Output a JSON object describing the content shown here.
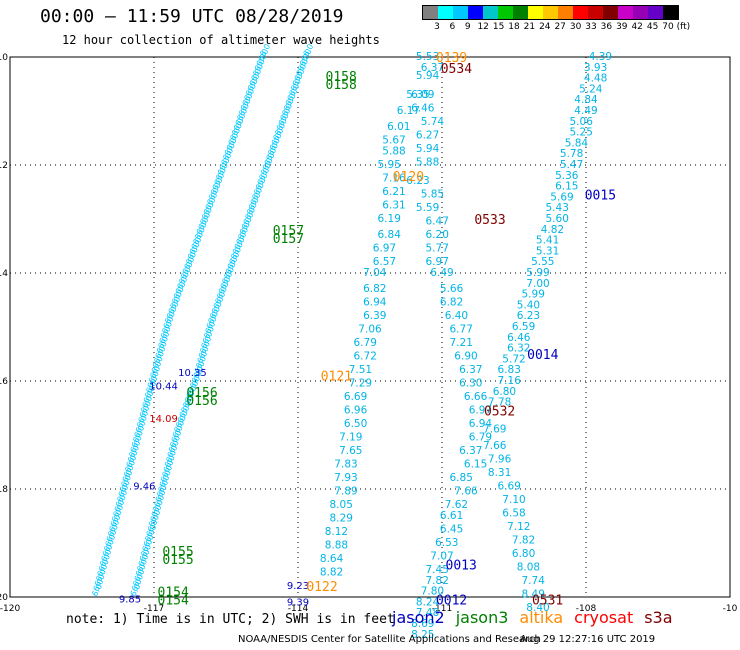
{
  "header": {
    "title": "00:00 – 11:59 UTC 08/28/2019",
    "subtitle": "12 hour collection of altimeter wave heights"
  },
  "legend": {
    "colors": [
      "#808080",
      "#00ffff",
      "#00c8ff",
      "#0000ff",
      "#00c8c8",
      "#00c800",
      "#008000",
      "#ffff00",
      "#ffc800",
      "#ff8000",
      "#ff0000",
      "#c80000",
      "#800000",
      "#c800c8",
      "#9600b4",
      "#6400c8",
      "#000000"
    ],
    "labels": [
      "3",
      "6",
      "9",
      "12",
      "15",
      "18",
      "21",
      "24",
      "27",
      "30",
      "33",
      "36",
      "39",
      "42",
      "45",
      "70",
      "(ft)"
    ]
  },
  "map": {
    "lat_labels": [
      "-10",
      "-12",
      "-14",
      "-16",
      "-18",
      "-20"
    ],
    "lon_labels": [
      "-120",
      "-117",
      "-114",
      "-111",
      "-108",
      "-10"
    ],
    "pass_labels": [
      {
        "text": "0139",
        "color": "#ff8c00",
        "lon": -110.8,
        "lat": -10.0
      },
      {
        "text": "0534",
        "color": "#800000",
        "lon": -110.7,
        "lat": -10.2
      },
      {
        "text": "0158",
        "color": "#008000",
        "lon": -113.1,
        "lat": -10.35
      },
      {
        "text": "0158",
        "color": "#008000",
        "lon": -113.1,
        "lat": -10.5
      },
      {
        "text": "0015",
        "color": "#0000c0",
        "lon": -107.7,
        "lat": -12.55
      },
      {
        "text": "0120",
        "color": "#ff8c00",
        "lon": -111.7,
        "lat": -12.2
      },
      {
        "text": "0533",
        "color": "#800000",
        "lon": -110.0,
        "lat": -13.0
      },
      {
        "text": "0157",
        "color": "#008000",
        "lon": -114.2,
        "lat": -13.2
      },
      {
        "text": "0157",
        "color": "#008000",
        "lon": -114.2,
        "lat": -13.35
      },
      {
        "text": "0014",
        "color": "#0000c0",
        "lon": -108.9,
        "lat": -15.5
      },
      {
        "text": "0121",
        "color": "#ff8c00",
        "lon": -113.2,
        "lat": -15.9
      },
      {
        "text": "0156",
        "color": "#008000",
        "lon": -116.0,
        "lat": -16.2
      },
      {
        "text": "0156",
        "color": "#008000",
        "lon": -116.0,
        "lat": -16.35
      },
      {
        "text": "0532",
        "color": "#800000",
        "lon": -109.8,
        "lat": -16.55
      },
      {
        "text": "0013",
        "color": "#0000c0",
        "lon": -110.6,
        "lat": -19.4
      },
      {
        "text": "0155",
        "color": "#008000",
        "lon": -116.5,
        "lat": -19.15
      },
      {
        "text": "0155",
        "color": "#008000",
        "lon": -116.5,
        "lat": -19.3
      },
      {
        "text": "0122",
        "color": "#ff8c00",
        "lon": -113.5,
        "lat": -19.8
      },
      {
        "text": "0154",
        "color": "#008000",
        "lon": -116.6,
        "lat": -19.9
      },
      {
        "text": "0154",
        "color": "#008000",
        "lon": -116.6,
        "lat": -20.05
      },
      {
        "text": "0012",
        "color": "#0000c0",
        "lon": -110.8,
        "lat": -20.05
      },
      {
        "text": "0531",
        "color": "#800000",
        "lon": -108.8,
        "lat": -20.05
      }
    ],
    "track_a": [
      [
        "5.53",
        -111.3,
        -10.0
      ],
      [
        "6.37",
        -111.2,
        -10.2
      ],
      [
        "5.94",
        -111.3,
        -10.35
      ],
      [
        "5.35",
        -111.5,
        -10.7
      ],
      [
        "6.09",
        -111.4,
        -10.7
      ],
      [
        "6.46",
        -111.4,
        -10.95
      ],
      [
        "6.17",
        -111.7,
        -11.0
      ],
      [
        "5.74",
        -111.2,
        -11.2
      ],
      [
        "6.01",
        -111.9,
        -11.3
      ],
      [
        "6.27",
        -111.3,
        -11.45
      ],
      [
        "5.67",
        -112.0,
        -11.55
      ],
      [
        "5.94",
        -111.3,
        -11.7
      ],
      [
        "5.88",
        -112.0,
        -11.75
      ],
      [
        "5.88",
        -111.3,
        -11.95
      ],
      [
        "5.95",
        -112.1,
        -12.0
      ],
      [
        "7.16",
        -112.0,
        -12.25
      ],
      [
        "6.23",
        -111.5,
        -12.3
      ],
      [
        "6.21",
        -112.0,
        -12.5
      ],
      [
        "5.85",
        -111.2,
        -12.55
      ],
      [
        "6.31",
        -112.0,
        -12.75
      ],
      [
        "5.59",
        -111.3,
        -12.8
      ],
      [
        "6.19",
        -112.1,
        -13.0
      ],
      [
        "6.47",
        -111.1,
        -13.05
      ],
      [
        "6.84",
        -112.1,
        -13.3
      ],
      [
        "6.20",
        -111.1,
        -13.3
      ],
      [
        "6.97",
        -112.2,
        -13.55
      ],
      [
        "5.77",
        -111.1,
        -13.55
      ],
      [
        "6.57",
        -112.2,
        -13.8
      ],
      [
        "6.97",
        -111.1,
        -13.8
      ],
      [
        "7.04",
        -112.4,
        -14.0
      ],
      [
        "6.49",
        -111.0,
        -14.0
      ],
      [
        "6.82",
        -112.4,
        -14.3
      ],
      [
        "5.66",
        -110.8,
        -14.3
      ],
      [
        "6.94",
        -112.4,
        -14.55
      ],
      [
        "6.82",
        -110.8,
        -14.55
      ],
      [
        "6.39",
        -112.4,
        -14.8
      ],
      [
        "6.40",
        -110.7,
        -14.8
      ],
      [
        "7.06",
        -112.5,
        -15.05
      ],
      [
        "6.77",
        -110.6,
        -15.05
      ],
      [
        "6.79",
        -112.6,
        -15.3
      ],
      [
        "7.21",
        -110.6,
        -15.3
      ],
      [
        "6.72",
        -112.6,
        -15.55
      ],
      [
        "6.90",
        -110.5,
        -15.55
      ],
      [
        "7.51",
        -112.7,
        -15.8
      ],
      [
        "6.37",
        -110.4,
        -15.8
      ],
      [
        "7.29",
        -112.7,
        -16.05
      ],
      [
        "6.30",
        -110.4,
        -16.05
      ],
      [
        "6.69",
        -112.8,
        -16.3
      ],
      [
        "6.66",
        -110.3,
        -16.3
      ],
      [
        "6.96",
        -112.8,
        -16.55
      ],
      [
        "6.97",
        -110.2,
        -16.55
      ],
      [
        "6.50",
        -112.8,
        -16.8
      ],
      [
        "6.94",
        -110.2,
        -16.8
      ],
      [
        "7.19",
        -112.9,
        -17.05
      ],
      [
        "6.79",
        -110.2,
        -17.05
      ],
      [
        "7.65",
        -112.9,
        -17.3
      ],
      [
        "6.37",
        -110.4,
        -17.3
      ],
      [
        "7.83",
        -113.0,
        -17.55
      ],
      [
        "6.15",
        -110.3,
        -17.55
      ],
      [
        "7.93",
        -113.0,
        -17.8
      ],
      [
        "6.85",
        -110.6,
        -17.8
      ],
      [
        "7.89",
        -113.0,
        -18.05
      ],
      [
        "7.66",
        -110.5,
        -18.05
      ],
      [
        "8.05",
        -113.1,
        -18.3
      ],
      [
        "7.62",
        -110.7,
        -18.3
      ],
      [
        "8.29",
        -113.1,
        -18.55
      ],
      [
        "6.61",
        -110.8,
        -18.5
      ],
      [
        "8.12",
        -113.2,
        -18.8
      ],
      [
        "6.45",
        -110.8,
        -18.75
      ],
      [
        "8.88",
        -113.2,
        -19.05
      ],
      [
        "6.53",
        -110.9,
        -19.0
      ],
      [
        "8.64",
        -113.3,
        -19.3
      ],
      [
        "7.07",
        -111.0,
        -19.25
      ],
      [
        "8.82",
        -113.3,
        -19.55
      ],
      [
        "7.45",
        -111.1,
        -19.5
      ],
      [
        "7.82",
        -111.1,
        -19.7
      ],
      [
        "7.80",
        -111.2,
        -19.9
      ],
      [
        "8.24",
        -111.3,
        -20.1
      ],
      [
        "7.48",
        -111.3,
        -20.3
      ],
      [
        "8.69",
        -111.4,
        -20.5
      ],
      [
        "8.25",
        -111.4,
        -20.7
      ]
    ],
    "track_b": [
      [
        "4.39",
        -107.7,
        -10.0
      ],
      [
        "3.93",
        -107.8,
        -10.2
      ],
      [
        "4.48",
        -107.8,
        -10.4
      ],
      [
        "5.24",
        -107.9,
        -10.6
      ],
      [
        "4.84",
        -108.0,
        -10.8
      ],
      [
        "4.49",
        -108.0,
        -11.0
      ],
      [
        "5.06",
        -108.1,
        -11.2
      ],
      [
        "5.25",
        -108.1,
        -11.4
      ],
      [
        "5.84",
        -108.2,
        -11.6
      ],
      [
        "5.78",
        -108.3,
        -11.8
      ],
      [
        "5.47",
        -108.3,
        -12.0
      ],
      [
        "5.36",
        -108.4,
        -12.2
      ],
      [
        "6.15",
        -108.4,
        -12.4
      ],
      [
        "5.69",
        -108.5,
        -12.6
      ],
      [
        "5.43",
        -108.6,
        -12.8
      ],
      [
        "5.60",
        -108.6,
        -13.0
      ],
      [
        "4.82",
        -108.7,
        -13.2
      ],
      [
        "5.41",
        -108.8,
        -13.4
      ],
      [
        "5.31",
        -108.8,
        -13.6
      ],
      [
        "5.55",
        -108.9,
        -13.8
      ],
      [
        "5.99",
        -109.0,
        -14.0
      ],
      [
        "7.00",
        -109.0,
        -14.2
      ],
      [
        "5.99",
        -109.1,
        -14.4
      ],
      [
        "5.40",
        -109.2,
        -14.6
      ],
      [
        "6.23",
        -109.2,
        -14.8
      ],
      [
        "6.59",
        -109.3,
        -15.0
      ],
      [
        "6.46",
        -109.4,
        -15.2
      ],
      [
        "6.32",
        -109.4,
        -15.4
      ],
      [
        "5.72",
        -109.5,
        -15.6
      ],
      [
        "6.83",
        -109.6,
        -15.8
      ],
      [
        "7.16",
        -109.6,
        -16.0
      ],
      [
        "6.80",
        -109.7,
        -16.2
      ],
      [
        "7.78",
        -109.8,
        -16.4
      ],
      [
        "7.69",
        -109.9,
        -16.9
      ],
      [
        "7.66",
        -109.9,
        -17.2
      ],
      [
        "7.96",
        -109.8,
        -17.45
      ],
      [
        "8.31",
        -109.8,
        -17.7
      ],
      [
        "6.69",
        -109.6,
        -17.95
      ],
      [
        "7.10",
        -109.5,
        -18.2
      ],
      [
        "6.58",
        -109.5,
        -18.45
      ],
      [
        "7.12",
        -109.4,
        -18.7
      ],
      [
        "7.82",
        -109.3,
        -18.95
      ],
      [
        "6.80",
        -109.3,
        -19.2
      ],
      [
        "8.08",
        -109.2,
        -19.45
      ],
      [
        "7.74",
        -109.1,
        -19.7
      ],
      [
        "8.49",
        -109.1,
        -19.95
      ],
      [
        "8.40",
        -109.0,
        -20.2
      ]
    ],
    "jason_points": [
      [
        "10.35",
        -116.2,
        -15.85
      ],
      [
        "10.44",
        -116.8,
        -16.1
      ],
      [
        "14.09",
        -116.8,
        -16.7
      ],
      [
        "9.46",
        -117.2,
        -17.95
      ],
      [
        "9.23",
        -114.0,
        -19.8
      ],
      [
        "9.39",
        -114.0,
        -20.1
      ],
      [
        "9.85",
        -117.5,
        -20.05
      ]
    ],
    "swath_left": [
      [
        -114.7,
        -10.0
      ],
      [
        -115.1,
        -11.0
      ],
      [
        -115.5,
        -12.0
      ],
      [
        -115.9,
        -13.0
      ],
      [
        -116.3,
        -14.0
      ],
      [
        -116.7,
        -15.0
      ],
      [
        -117.0,
        -16.0
      ],
      [
        -117.3,
        -17.0
      ],
      [
        -117.6,
        -18.0
      ],
      [
        -117.9,
        -19.0
      ],
      [
        -118.2,
        -20.0
      ]
    ],
    "swath_right": [
      [
        -113.8,
        -10.0
      ],
      [
        -114.2,
        -11.0
      ],
      [
        -114.6,
        -12.0
      ],
      [
        -115.0,
        -13.0
      ],
      [
        -115.4,
        -14.0
      ],
      [
        -115.8,
        -15.0
      ],
      [
        -116.1,
        -16.0
      ],
      [
        -116.5,
        -17.0
      ],
      [
        -116.8,
        -18.0
      ],
      [
        -117.1,
        -19.0
      ],
      [
        -117.4,
        -20.0
      ]
    ]
  },
  "note": "note: 1) Time is in UTC; 2) SWH is in feet",
  "satellites": [
    {
      "name": "jason2",
      "color": "#0000c0"
    },
    {
      "name": "jason3",
      "color": "#008000"
    },
    {
      "name": "altika",
      "color": "#ff8c00"
    },
    {
      "name": "cryosat",
      "color": "#ff0000"
    },
    {
      "name": "s3a",
      "color": "#800000"
    }
  ],
  "footer": "NOAA/NESDIS Center for Satellite Applications and Research",
  "footer_right": "Aug 29 12:27:16 UTC 2019"
}
